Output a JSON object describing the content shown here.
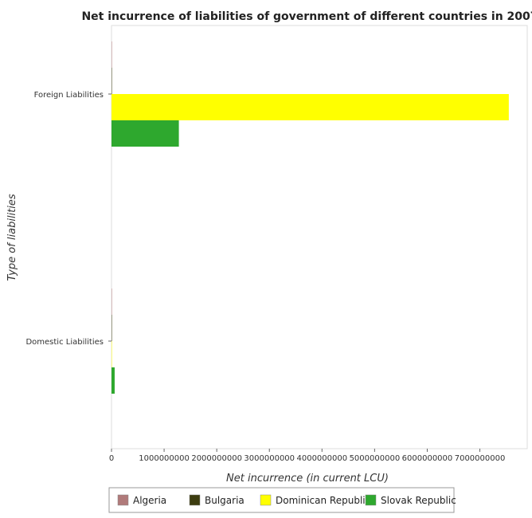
{
  "chart_data": {
    "type": "bar",
    "orientation": "horizontal",
    "title": "Net incurrence of liabilities of government of different countries in 2007",
    "xlabel": "Net incurrence (in current LCU)",
    "ylabel": "Type of liabilities",
    "categories": [
      "Domestic Liabilities",
      "Foreign Liabilities"
    ],
    "series": [
      {
        "name": "Algeria",
        "color": "#b07a7a",
        "values": [
          0,
          0
        ]
      },
      {
        "name": "Bulgaria",
        "color": "#3d3d10",
        "values": [
          0,
          0
        ]
      },
      {
        "name": "Dominican Republic",
        "color": "#ffff00",
        "values": [
          0,
          7550000000
        ]
      },
      {
        "name": "Slovak Republic",
        "color": "#2ea82e",
        "values": [
          60000000,
          1280000000
        ]
      }
    ],
    "xlim": [
      0,
      7900000000
    ],
    "xticks": [
      0,
      1000000000,
      2000000000,
      3000000000,
      4000000000,
      5000000000,
      6000000000,
      7000000000
    ],
    "xtick_labels": [
      "0",
      "1000000000",
      "2000000000",
      "3000000000",
      "4000000000",
      "5000000000",
      "6000000000",
      "7000000000"
    ],
    "grid": false,
    "legend_position": "bottom"
  }
}
